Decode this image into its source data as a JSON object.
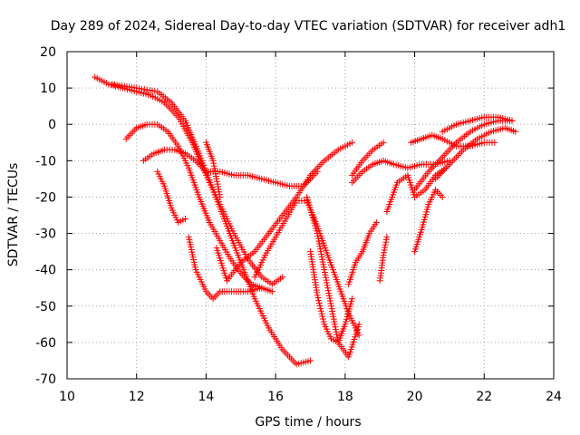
{
  "chart_data": {
    "type": "scatter",
    "title": "Day 289 of 2024, Sidereal Day-to-day VTEC variation (SDTVAR) for receiver adh1",
    "xlabel": "GPS time / hours",
    "ylabel": "SDTVAR / TECUs",
    "xlim": [
      10,
      24
    ],
    "ylim": [
      -70,
      20
    ],
    "xticks": [
      10,
      12,
      14,
      16,
      18,
      20,
      22,
      24
    ],
    "yticks": [
      -70,
      -60,
      -50,
      -40,
      -30,
      -20,
      -10,
      0,
      10,
      20
    ],
    "xtick_labels": [
      "10",
      "12",
      "14",
      "16",
      "18",
      "20",
      "22",
      "24"
    ],
    "ytick_labels": [
      "-70",
      "-60",
      "-50",
      "-40",
      "-30",
      "-20",
      "-10",
      "0",
      "10",
      "20"
    ],
    "grid": true,
    "marker": "+",
    "color": "#ff0000",
    "series": [
      {
        "x": [
          10.8,
          11.2,
          11.6,
          12.0,
          12.4,
          12.8,
          13.2,
          13.6,
          14.0,
          14.4,
          14.8,
          15.2,
          15.6,
          15.9,
          16.2
        ],
        "y": [
          13,
          11,
          10,
          9,
          8,
          6,
          2,
          -5,
          -14,
          -22,
          -30,
          -37,
          -42,
          -44,
          -42
        ]
      },
      {
        "x": [
          11.3,
          12.0,
          12.6,
          13.0,
          13.4,
          13.8,
          14.2,
          14.6,
          15.0,
          15.4,
          15.8,
          16.2,
          16.6,
          17.0
        ],
        "y": [
          11,
          10,
          9,
          6,
          1,
          -8,
          -18,
          -28,
          -38,
          -48,
          -56,
          -62,
          -66,
          -65
        ]
      },
      {
        "x": [
          11.7,
          12.0,
          12.3,
          12.6,
          12.9,
          13.2,
          13.5,
          13.8,
          14.1,
          14.4,
          14.7,
          15.0,
          15.3,
          15.6,
          15.9
        ],
        "y": [
          -4,
          -1,
          0,
          0,
          -2,
          -6,
          -12,
          -20,
          -27,
          -32,
          -37,
          -41,
          -44,
          -45,
          -46
        ]
      },
      {
        "x": [
          12.2,
          12.5,
          12.8,
          13.1,
          13.4,
          13.7,
          14.0,
          14.4,
          14.8,
          15.2,
          15.6,
          16.0,
          16.4,
          16.8,
          17.2
        ],
        "y": [
          -10,
          -8,
          -7,
          -7,
          -8,
          -10,
          -13,
          -13,
          -14,
          -14,
          -15,
          -16,
          -17,
          -17,
          -13
        ]
      },
      {
        "x": [
          12.6,
          12.8,
          13.0,
          13.2,
          13.4
        ],
        "y": [
          -13,
          -17,
          -23,
          -27,
          -26
        ]
      },
      {
        "x": [
          13.5,
          13.7,
          14.0,
          14.2,
          14.4,
          14.8,
          15.2,
          15.6
        ],
        "y": [
          -31,
          -40,
          -46,
          -48,
          -46,
          -46,
          -46,
          -45
        ]
      },
      {
        "x": [
          14.0,
          14.2,
          14.4
        ],
        "y": [
          -5,
          -10,
          -20
        ]
      },
      {
        "x": [
          14.3,
          14.6,
          15.0,
          15.4,
          15.8,
          16.2,
          16.6,
          17.0,
          17.4,
          17.8,
          18.2
        ],
        "y": [
          -34,
          -43,
          -38,
          -35,
          -30,
          -25,
          -20,
          -14,
          -10,
          -7,
          -5
        ]
      },
      {
        "x": [
          15.4,
          15.7,
          16.0,
          16.3,
          16.6,
          16.9,
          17.2,
          17.5,
          17.8,
          18.1,
          18.4
        ],
        "y": [
          -42,
          -36,
          -31,
          -26,
          -21,
          -21,
          -28,
          -36,
          -44,
          -52,
          -58
        ]
      },
      {
        "x": [
          16.9,
          17.2,
          17.5,
          17.8,
          18.1,
          18.4
        ],
        "y": [
          -20,
          -30,
          -45,
          -60,
          -64,
          -55
        ]
      },
      {
        "x": [
          17.0,
          17.2,
          17.4,
          17.6,
          17.8,
          18.0,
          18.2
        ],
        "y": [
          -35,
          -47,
          -55,
          -59,
          -60,
          -55,
          -48
        ]
      },
      {
        "x": [
          18.2,
          18.5,
          18.8,
          19.1,
          19.4,
          19.8,
          20.2,
          20.6,
          21.0
        ],
        "y": [
          -16,
          -13,
          -11,
          -10,
          -11,
          -12,
          -11,
          -11,
          -10
        ]
      },
      {
        "x": [
          18.1,
          18.3,
          18.5,
          18.7,
          18.9
        ],
        "y": [
          -44,
          -38,
          -35,
          -30,
          -27
        ]
      },
      {
        "x": [
          18.2,
          18.5,
          18.8,
          19.1
        ],
        "y": [
          -14,
          -10,
          -7,
          -5
        ]
      },
      {
        "x": [
          19.0,
          19.1,
          19.2
        ],
        "y": [
          -43,
          -36,
          -31
        ]
      },
      {
        "x": [
          19.2,
          19.5,
          19.8,
          20.0,
          20.3,
          20.6,
          20.9
        ],
        "y": [
          -24,
          -16,
          -14,
          -20,
          -18,
          -14,
          -12
        ]
      },
      {
        "x": [
          19.9,
          20.2,
          20.5,
          20.8,
          21.2,
          21.6,
          22.0,
          22.3
        ],
        "y": [
          -5,
          -4,
          -3,
          -4,
          -6,
          -6,
          -5,
          -5
        ]
      },
      {
        "x": [
          20.0,
          20.2,
          20.4,
          20.6,
          20.8
        ],
        "y": [
          -35,
          -29,
          -22,
          -18,
          -20
        ]
      },
      {
        "x": [
          20.0,
          20.4,
          20.8,
          21.2,
          21.6,
          22.0,
          22.4,
          22.8
        ],
        "y": [
          -18,
          -13,
          -9,
          -5,
          -2,
          0,
          1,
          1
        ]
      },
      {
        "x": [
          20.6,
          21.0,
          21.4,
          21.8,
          22.2,
          22.6,
          22.9
        ],
        "y": [
          -15,
          -11,
          -7,
          -4,
          -2,
          -1,
          -2
        ]
      },
      {
        "x": [
          20.8,
          21.2,
          21.6,
          22.0,
          22.4,
          22.8
        ],
        "y": [
          -2,
          0,
          1,
          2,
          2,
          1
        ]
      }
    ]
  }
}
